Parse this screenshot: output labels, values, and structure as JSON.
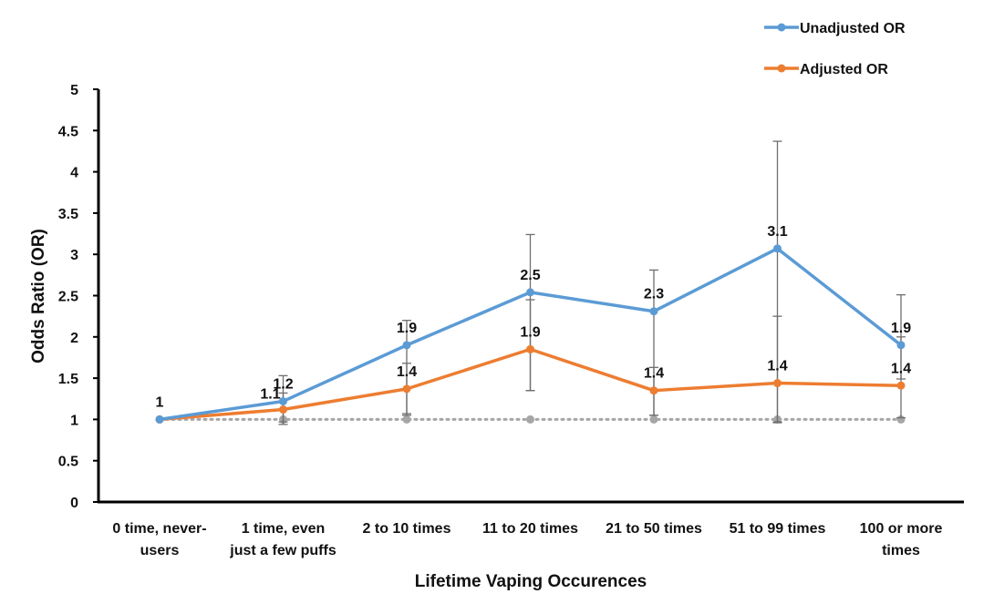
{
  "chart_data": {
    "type": "line",
    "title": "",
    "xlabel": "Lifetime Vaping Occurences",
    "ylabel": "Odds Ratio (OR)",
    "ylim": [
      0,
      5
    ],
    "yticks": [
      "0",
      "0.5",
      "1",
      "1.5",
      "2",
      "2.5",
      "3",
      "3.5",
      "4",
      "4.5",
      "5"
    ],
    "categories": [
      [
        "0 time, never-",
        "users"
      ],
      [
        "1 time, even",
        "just a few puffs"
      ],
      [
        "2 to 10 times"
      ],
      [
        "11 to 20 times"
      ],
      [
        "21 to 50 times"
      ],
      [
        "51 to 99 times"
      ],
      [
        "100 or more",
        "times"
      ]
    ],
    "grid": false,
    "legend_position": "top-right",
    "reference_line": {
      "value": 1,
      "style": "dotted",
      "color": "#a6a6a6"
    },
    "series": [
      {
        "name": "Unadjusted OR",
        "color": "#5b9bd5",
        "values": [
          1.0,
          1.22,
          1.9,
          2.54,
          2.31,
          3.07,
          1.9
        ],
        "error_low": [
          1.0,
          0.97,
          1.05,
          1.35,
          1.05,
          0.97,
          1.49
        ],
        "error_high": [
          1.0,
          1.53,
          2.2,
          3.24,
          2.81,
          4.37,
          2.51
        ],
        "data_labels": [
          "1",
          "1.2",
          "1.9",
          "2.5",
          "2.3",
          "3.1",
          "1.9"
        ]
      },
      {
        "name": "Adjusted OR",
        "color": "#ed7d31",
        "values": [
          1.0,
          1.12,
          1.37,
          1.85,
          1.35,
          1.44,
          1.41
        ],
        "error_low": [
          1.0,
          0.94,
          1.07,
          1.35,
          1.05,
          0.96,
          1.02
        ],
        "error_high": [
          1.0,
          1.32,
          1.68,
          2.45,
          1.63,
          2.25,
          2.0
        ],
        "data_labels": [
          "",
          "1.1",
          "1.4",
          "1.9",
          "1.4",
          "1.4",
          "1.4"
        ]
      }
    ]
  }
}
